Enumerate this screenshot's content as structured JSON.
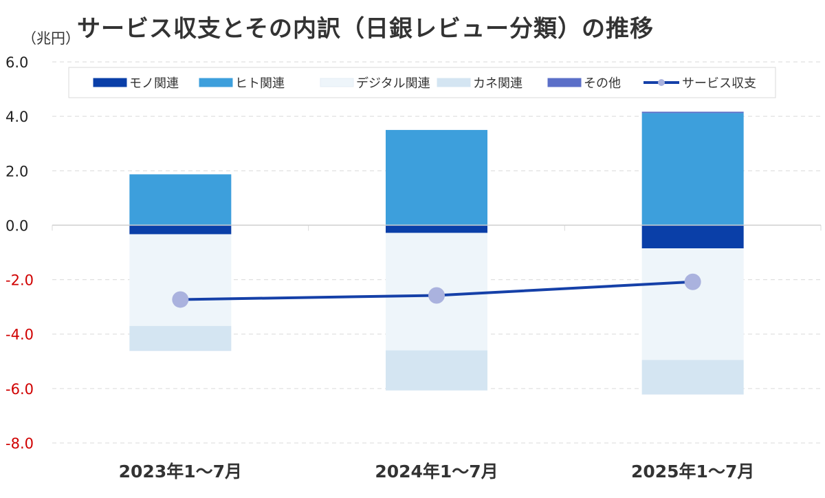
{
  "title": "サービス収支とその内訳（日銀レビュー分類）の推移",
  "unit_label": "（兆円）",
  "chart_data": {
    "type": "bar",
    "stacked": true,
    "categories": [
      "2023年1～7月",
      "2024年1～7月",
      "2025年1～7月"
    ],
    "series": [
      {
        "name": "モノ関連",
        "kind": "bar",
        "color": "#0a3fa8",
        "values": [
          -0.33,
          -0.28,
          -0.85
        ]
      },
      {
        "name": "ヒト関連",
        "kind": "bar",
        "color": "#3d9fdc",
        "values": [
          1.87,
          3.5,
          4.12
        ]
      },
      {
        "name": "デジタル関連",
        "kind": "bar",
        "color": "#eef5fa",
        "values": [
          -3.37,
          -4.32,
          -4.1
        ]
      },
      {
        "name": "カネ関連",
        "kind": "bar",
        "color": "#d4e5f2",
        "values": [
          -0.92,
          -1.47,
          -1.27
        ]
      },
      {
        "name": "その他",
        "kind": "bar",
        "color": "#5b6fc8",
        "values": [
          0.0,
          0.0,
          0.05
        ]
      },
      {
        "name": "サービス収支",
        "kind": "line",
        "color": "#1540a8",
        "marker_color": "#aab2de",
        "values": [
          -2.73,
          -2.58,
          -2.08
        ]
      }
    ],
    "yticks": [
      "6.0",
      "4.0",
      "2.0",
      "0.0",
      "-2.0",
      "-4.0",
      "-6.0",
      "-8.0"
    ],
    "ylim": [
      -8,
      6
    ],
    "negative_tick_color": "#d00000",
    "grid": true,
    "legend_position": "top"
  }
}
